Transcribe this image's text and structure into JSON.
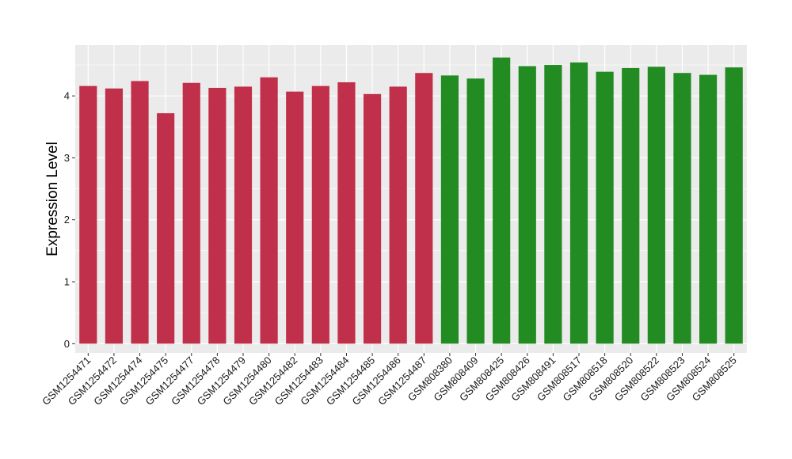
{
  "chart_data": {
    "type": "bar",
    "title": "",
    "xlabel": "",
    "ylabel": "Expression Level",
    "ylim": [
      -0.15,
      4.82
    ],
    "yticks": [
      0,
      1,
      2,
      3,
      4
    ],
    "grid": true,
    "legend": "none",
    "colors": {
      "group_1": "#c1304a",
      "group_2": "#228b22",
      "panel": "#ebebeb",
      "gridline": "#ffffff"
    },
    "categories": [
      "GSM1254471",
      "GSM1254472",
      "GSM1254474",
      "GSM1254475",
      "GSM1254477",
      "GSM1254478",
      "GSM1254479",
      "GSM1254480",
      "GSM1254482",
      "GSM1254483",
      "GSM1254484",
      "GSM1254485",
      "GSM1254486",
      "GSM1254487",
      "GSM808380",
      "GSM808409",
      "GSM808425",
      "GSM808426",
      "GSM808491",
      "GSM808517",
      "GSM808518",
      "GSM808520",
      "GSM808522",
      "GSM808523",
      "GSM808524",
      "GSM808525"
    ],
    "values": [
      4.16,
      4.12,
      4.24,
      3.72,
      4.21,
      4.13,
      4.15,
      4.3,
      4.07,
      4.16,
      4.22,
      4.03,
      4.15,
      4.37,
      4.33,
      4.28,
      4.62,
      4.48,
      4.5,
      4.54,
      4.39,
      4.45,
      4.47,
      4.37,
      4.34,
      4.46
    ],
    "groups": [
      "group_1",
      "group_1",
      "group_1",
      "group_1",
      "group_1",
      "group_1",
      "group_1",
      "group_1",
      "group_1",
      "group_1",
      "group_1",
      "group_1",
      "group_1",
      "group_1",
      "group_2",
      "group_2",
      "group_2",
      "group_2",
      "group_2",
      "group_2",
      "group_2",
      "group_2",
      "group_2",
      "group_2",
      "group_2",
      "group_2"
    ]
  }
}
